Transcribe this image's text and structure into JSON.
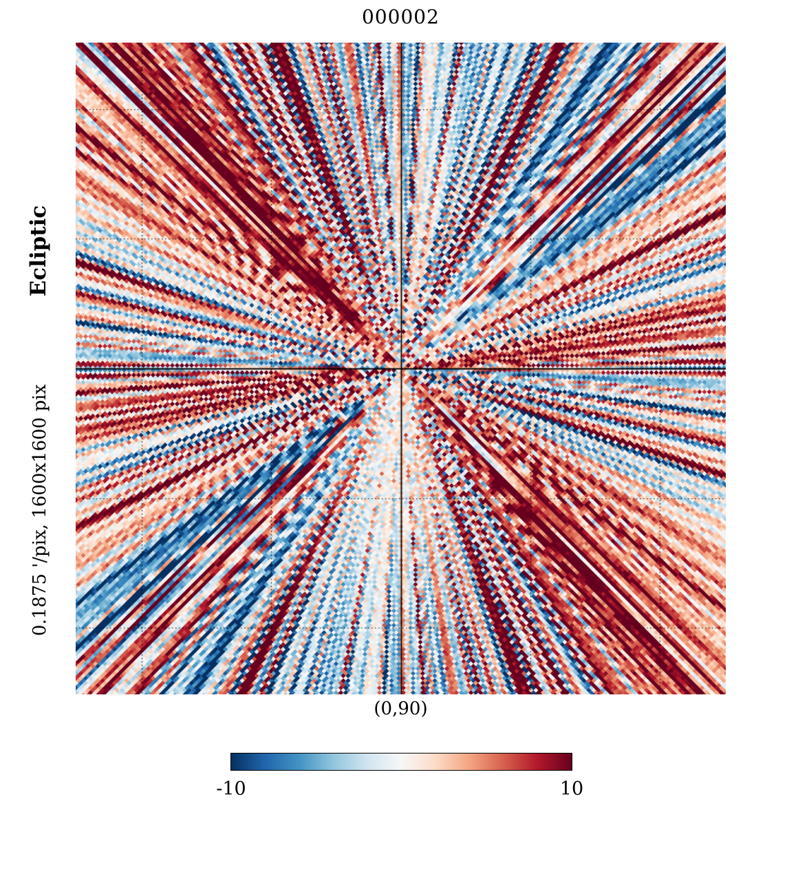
{
  "title": "000002",
  "left_labels": {
    "coord_system": "Ecliptic",
    "resolution": "0.1875 '/pix,  1600x1600 pix"
  },
  "bottom_annotation": "(0,90)",
  "colorbar": {
    "min_label": "-10",
    "max_label": "10",
    "min": -10,
    "max": 10,
    "colormap_stops": [
      "#053061",
      "#2166ac",
      "#4393c3",
      "#92c5de",
      "#d1e5f0",
      "#f7f7f7",
      "#fddbc7",
      "#f4a582",
      "#d6604d",
      "#b2182b",
      "#67001f"
    ]
  },
  "chart_data": {
    "type": "heatmap",
    "title": "000002",
    "coordinate_system": "Ecliptic",
    "pixel_scale": "0.1875 '/pix",
    "map_size": "1600x1600 pix",
    "projection_center": "(0,90)",
    "value_range": [
      -10,
      10
    ],
    "colormap": "RdBu reversed (blue=-10, white=0, red=+10)",
    "pattern": {
      "description": "radial scan-noise streaks emanating from the projection center, quantized into diamond-shaped map pixels, red-dominant with blue streak bands",
      "seed": 20240002,
      "harmonics": 60,
      "cell_size": 7,
      "bias": 1.4
    },
    "grid": {
      "style": "dotted",
      "center_lines": "solid",
      "fractions": [
        -0.398,
        -0.199,
        0.199,
        0.398
      ]
    }
  }
}
